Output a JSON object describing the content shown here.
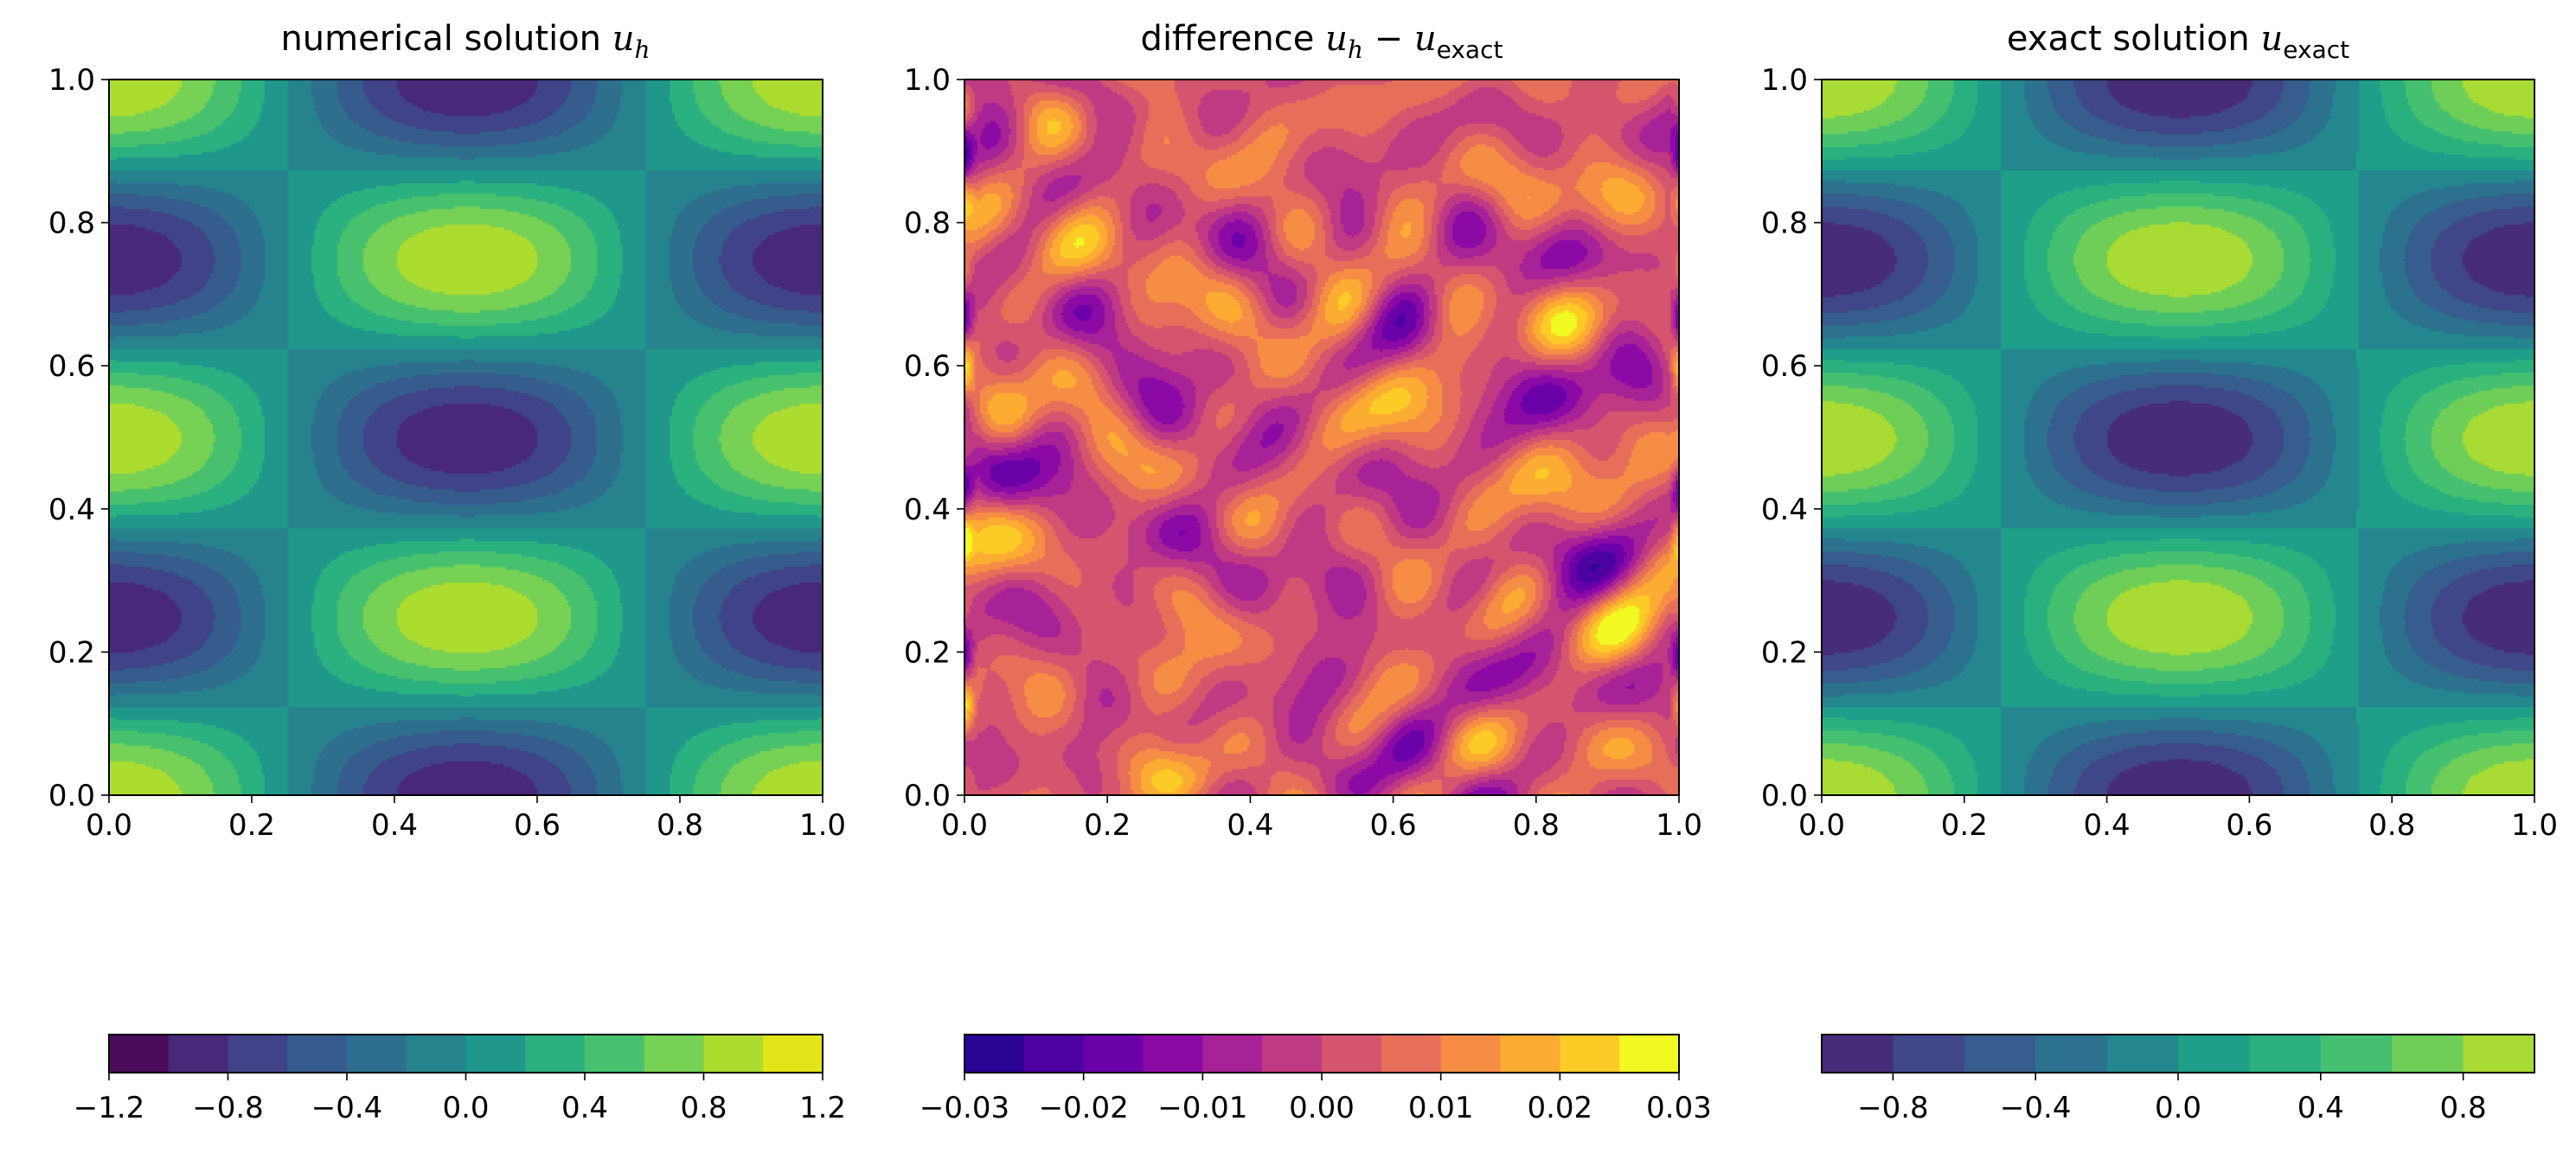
{
  "chart_data": [
    {
      "type": "contour",
      "title": "numerical solution u_h",
      "title_parts": {
        "text": "numerical solution ",
        "var": "u",
        "sub": "h"
      },
      "xlim": [
        0.0,
        1.0
      ],
      "ylim": [
        0.0,
        1.0
      ],
      "xticks": [
        "0.0",
        "0.2",
        "0.4",
        "0.6",
        "0.8",
        "1.0"
      ],
      "yticks": [
        "0.0",
        "0.2",
        "0.4",
        "0.6",
        "0.8",
        "1.0"
      ],
      "colormap": "viridis",
      "zlim": [
        -1.2,
        1.2
      ],
      "colorbar": {
        "orientation": "horizontal",
        "ticks": [
          "−1.2",
          "−0.8",
          "−0.4",
          "0.0",
          "0.4",
          "0.8",
          "1.2"
        ],
        "tick_values": [
          -1.2,
          -0.8,
          -0.4,
          0.0,
          0.4,
          0.8,
          1.2
        ]
      },
      "level_colors": [
        "#4a0c5a",
        "#482878",
        "#404387",
        "#365c8d",
        "#2e6f8e",
        "#26838e",
        "#1f978b",
        "#2bb07f",
        "#48c16e",
        "#76d154",
        "#addc30",
        "#e3e418"
      ]
    },
    {
      "type": "contour",
      "title": "difference u_h − u_exact",
      "title_parts": {
        "text": "difference ",
        "var": "u",
        "sub": "h",
        "op": " − ",
        "var2": "u",
        "sub2": "exact"
      },
      "xlim": [
        0.0,
        1.0
      ],
      "ylim": [
        0.0,
        1.0
      ],
      "xticks": [
        "0.0",
        "0.2",
        "0.4",
        "0.6",
        "0.8",
        "1.0"
      ],
      "yticks": [
        "0.0",
        "0.2",
        "0.4",
        "0.6",
        "0.8",
        "1.0"
      ],
      "colormap": "plasma",
      "zlim": [
        -0.03,
        0.03
      ],
      "colorbar": {
        "orientation": "horizontal",
        "ticks": [
          "−0.03",
          "−0.02",
          "−0.01",
          "0.00",
          "0.01",
          "0.02",
          "0.03"
        ],
        "tick_values": [
          -0.03,
          -0.02,
          -0.01,
          0.0,
          0.01,
          0.02,
          0.03
        ]
      },
      "level_colors": [
        "#2a0593",
        "#4c02a1",
        "#6a00a8",
        "#8b0aa5",
        "#a72197",
        "#c03a83",
        "#d5546e",
        "#e76f5a",
        "#f68d45",
        "#fdac33",
        "#fdcb26",
        "#f0f921"
      ]
    },
    {
      "type": "contour",
      "title": "exact solution u_exact",
      "title_parts": {
        "text": "exact solution ",
        "var": "u",
        "sub": "exact"
      },
      "xlim": [
        0.0,
        1.0
      ],
      "ylim": [
        0.0,
        1.0
      ],
      "xticks": [
        "0.0",
        "0.2",
        "0.4",
        "0.6",
        "0.8",
        "1.0"
      ],
      "yticks": [
        "0.0",
        "0.2",
        "0.4",
        "0.6",
        "0.8",
        "1.0"
      ],
      "colormap": "viridis",
      "zlim": [
        -1.0,
        1.0
      ],
      "colorbar": {
        "orientation": "horizontal",
        "ticks": [
          "−0.8",
          "−0.4",
          "0.0",
          "0.4",
          "0.8"
        ],
        "tick_values": [
          -0.8,
          -0.4,
          0.0,
          0.4,
          0.8
        ]
      },
      "level_colors": [
        "#472c7a",
        "#3f4788",
        "#365d8d",
        "#2c728e",
        "#24868e",
        "#1f9e89",
        "#2ab07f",
        "#45bf70",
        "#6ece58",
        "#a8db34"
      ]
    }
  ]
}
